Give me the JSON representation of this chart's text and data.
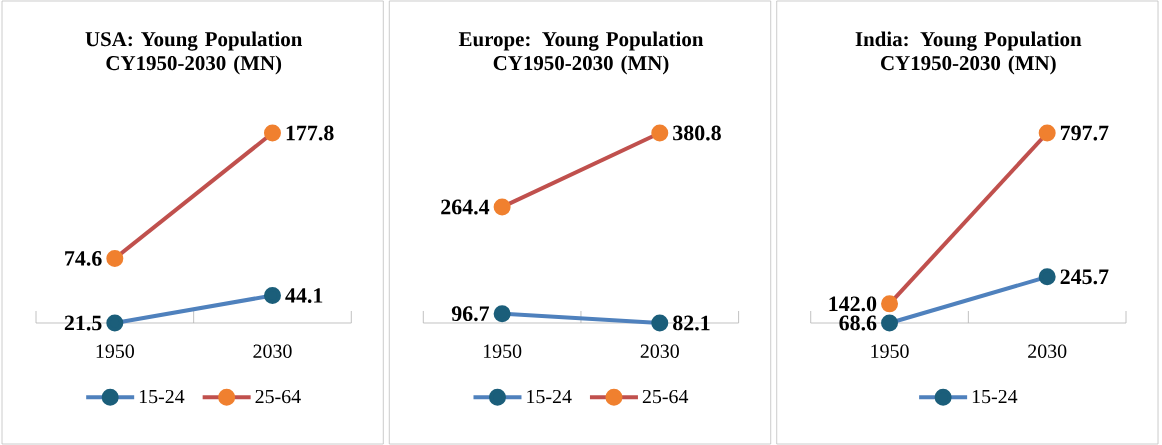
{
  "chart_data": [
    {
      "type": "line",
      "title": "USA: Young Population CY1950-2030 (MN)",
      "categories": [
        "1950",
        "2030"
      ],
      "marker": "circle",
      "legend": "bottom",
      "series": [
        {
          "name": "15-24",
          "color": "#4f81bd",
          "values": [
            21.5,
            44.1
          ],
          "value_labels": [
            "21.5",
            "44.1"
          ]
        },
        {
          "name": "25-64",
          "color": "#c0504d",
          "values": [
            74.6,
            177.8
          ],
          "value_labels": [
            "74.6",
            "177.8"
          ]
        }
      ]
    },
    {
      "type": "line",
      "title": "Europe: Young Population CY1950-2030 (MN)",
      "categories": [
        "1950",
        "2030"
      ],
      "marker": "circle",
      "legend": "bottom",
      "series": [
        {
          "name": "15-24",
          "color": "#4f81bd",
          "values": [
            96.7,
            82.1
          ],
          "value_labels": [
            "96.7",
            "82.1"
          ]
        },
        {
          "name": "25-64",
          "color": "#c0504d",
          "values": [
            264.4,
            380.8
          ],
          "value_labels": [
            "264.4",
            "380.8"
          ]
        }
      ]
    },
    {
      "type": "line",
      "title": "India: Young Population CY1950-2030 (MN)",
      "categories": [
        "1950",
        "2030"
      ],
      "marker": "circle",
      "legend": "bottom",
      "series": [
        {
          "name": "15-24",
          "color": "#4f81bd",
          "values": [
            68.6,
            245.7
          ],
          "value_labels": [
            "68.6",
            "245.7"
          ]
        },
        {
          "color": "#c0504d",
          "values": [
            142.0,
            797.7
          ],
          "value_labels": [
            "142.0",
            "797.7"
          ]
        }
      ]
    }
  ]
}
